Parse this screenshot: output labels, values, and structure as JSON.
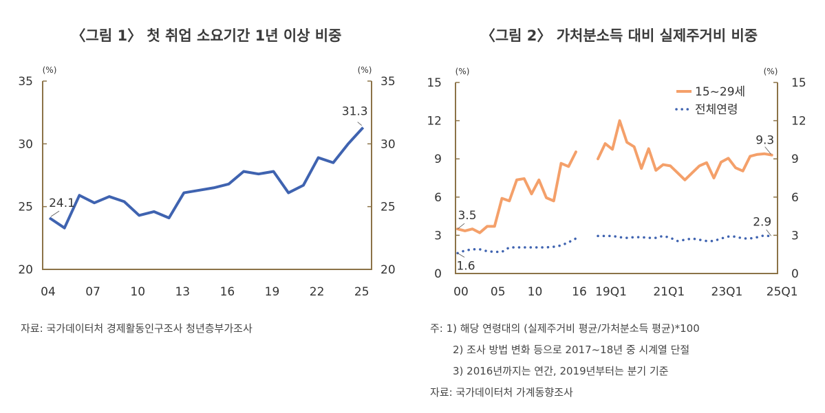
{
  "chart_data": [
    {
      "type": "line",
      "title": "〈그림 1〉 첫 취업 소요기간 1년 이상 비중",
      "unit_left": "(%)",
      "unit_right": "(%)",
      "x": [
        "04",
        "05",
        "06",
        "07",
        "08",
        "09",
        "10",
        "11",
        "12",
        "13",
        "14",
        "15",
        "16",
        "17",
        "18",
        "19",
        "20",
        "21",
        "22",
        "23",
        "24",
        "25"
      ],
      "xtick_labels": [
        "04",
        "07",
        "10",
        "13",
        "16",
        "19",
        "22",
        "25"
      ],
      "ylim": [
        20,
        35
      ],
      "yticks": [
        20,
        25,
        30,
        35
      ],
      "series": [
        {
          "values": [
            24.1,
            23.3,
            25.9,
            25.3,
            25.8,
            25.4,
            24.3,
            24.6,
            24.1,
            26.1,
            26.3,
            26.5,
            26.8,
            27.8,
            27.6,
            27.8,
            26.1,
            26.7,
            28.9,
            28.5,
            30.0,
            31.3
          ],
          "color": "#3F63B0"
        }
      ],
      "annotations": [
        {
          "x": "04",
          "label": "24.1"
        },
        {
          "x": "25",
          "label": "31.3"
        }
      ],
      "grid": false,
      "source": "자료: 국가데이터처 경제활동인구조사 청년층부가조사"
    },
    {
      "type": "line",
      "title": "〈그림 2〉 가처분소득 대비 실제주거비 비중",
      "unit_left": "(%)",
      "unit_right": "(%)",
      "x_annual": [
        "00",
        "01",
        "02",
        "03",
        "04",
        "05",
        "06",
        "07",
        "08",
        "09",
        "10",
        "11",
        "12",
        "13",
        "14",
        "15",
        "16"
      ],
      "x_quarterly": [
        "19Q1",
        "19Q2",
        "19Q3",
        "19Q4",
        "20Q1",
        "20Q2",
        "20Q3",
        "20Q4",
        "21Q1",
        "21Q2",
        "21Q3",
        "21Q4",
        "22Q1",
        "22Q2",
        "22Q3",
        "22Q4",
        "23Q1",
        "23Q2",
        "23Q3",
        "23Q4",
        "24Q1",
        "24Q2",
        "24Q3",
        "24Q4",
        "25Q1"
      ],
      "xtick_labels": [
        "00",
        "05",
        "10",
        "16",
        "19Q1",
        "21Q1",
        "23Q1",
        "25Q1"
      ],
      "ylim": [
        0,
        15
      ],
      "yticks": [
        0,
        3,
        6,
        9,
        12,
        15
      ],
      "legend_position": "top-right",
      "series": [
        {
          "name": "15~29세",
          "color": "#F4A06A",
          "style": "solid",
          "annual": [
            3.5,
            3.35,
            3.5,
            3.2,
            3.7,
            3.7,
            5.9,
            5.7,
            7.35,
            7.45,
            6.25,
            7.35,
            5.95,
            5.7,
            8.65,
            8.4,
            9.55
          ],
          "quarterly": [
            9.0,
            10.2,
            9.75,
            12.0,
            10.3,
            9.95,
            8.25,
            9.8,
            8.1,
            8.55,
            8.45,
            7.9,
            7.35,
            7.9,
            8.45,
            8.7,
            7.5,
            8.75,
            9.05,
            8.3,
            8.05,
            9.2,
            9.35,
            9.4,
            9.3
          ]
        },
        {
          "name": "전체연령",
          "color": "#3F63B0",
          "style": "dotted",
          "annual": [
            1.6,
            1.8,
            1.9,
            1.9,
            1.75,
            1.7,
            1.7,
            2.05,
            2.05,
            2.05,
            2.05,
            2.05,
            2.05,
            2.1,
            2.2,
            2.45,
            2.75
          ],
          "quarterly": [
            2.95,
            2.95,
            2.95,
            2.85,
            2.8,
            2.85,
            2.85,
            2.8,
            2.8,
            2.95,
            2.8,
            2.55,
            2.65,
            2.75,
            2.65,
            2.55,
            2.55,
            2.75,
            2.9,
            2.9,
            2.75,
            2.75,
            2.85,
            3.0,
            2.9
          ]
        }
      ],
      "legend_labels": [
        "15~29세",
        "전체연령"
      ],
      "annotations": [
        {
          "series": "15~29세",
          "x": "00",
          "label": "3.5"
        },
        {
          "series": "15~29세",
          "x": "25Q1",
          "label": "9.3"
        },
        {
          "series": "전체연령",
          "x": "00",
          "label": "1.6"
        },
        {
          "series": "전체연령",
          "x": "25Q1",
          "label": "2.9"
        }
      ],
      "grid": false,
      "notes": [
        "주: 1) 해당 연령대의 (실제주거비 평균/가처분소득 평균)*100",
        "2) 조사 방법 변화 등으로 2017~18년 중 시계열 단절",
        "3) 2016년까지는 연간, 2019년부터는 분기 기준"
      ],
      "source": "자료: 국가데이터처 가계동향조사"
    }
  ],
  "colors": {
    "axis": "#8B7247"
  }
}
